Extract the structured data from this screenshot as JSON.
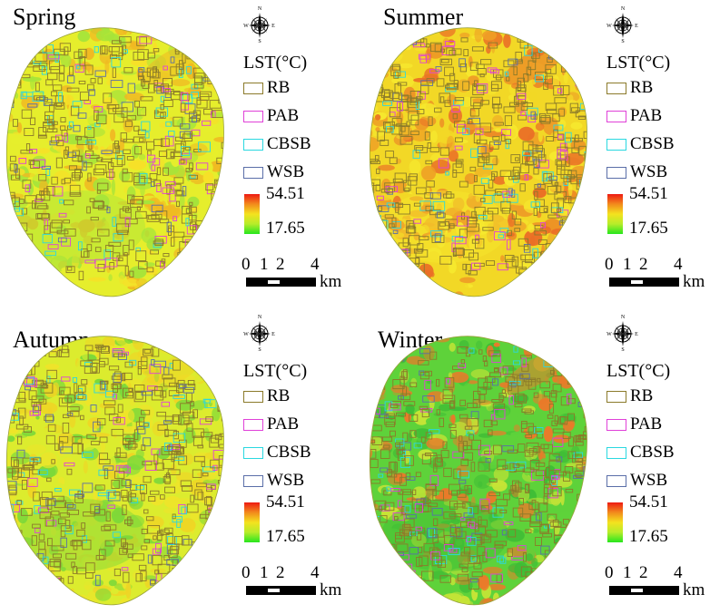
{
  "legend": {
    "title": "LST(°C)",
    "items": [
      {
        "label": "RB",
        "color": "#8b7a2a"
      },
      {
        "label": "PAB",
        "color": "#e040d8"
      },
      {
        "label": "CBSB",
        "color": "#2ad8e0"
      },
      {
        "label": "WSB",
        "color": "#5a6ea8"
      }
    ],
    "max": "54.51",
    "min": "17.65"
  },
  "scale": {
    "ticks": [
      "0",
      "1",
      "2",
      "4"
    ],
    "unit": "km"
  },
  "compass": {
    "n": "N",
    "s": "S",
    "e": "E",
    "w": "W",
    "icon": "compass-rose-icon"
  },
  "panels": [
    {
      "title": "Spring",
      "palette": {
        "base": "#e6ee2c",
        "hot": "#f0b822",
        "cool": "#a6e43a",
        "warm": "#f6e028"
      }
    },
    {
      "title": "Summer",
      "palette": {
        "base": "#f2d826",
        "hot": "#ea6e26",
        "cool": "#f6e82e",
        "warm": "#ee9e26"
      }
    },
    {
      "title": "Autumn",
      "palette": {
        "base": "#dcec2e",
        "hot": "#f0d424",
        "cool": "#7ad83a",
        "warm": "#eee42a"
      }
    },
    {
      "title": "Winter",
      "palette": {
        "base": "#5ed23a",
        "hot": "#ea7a2a",
        "cool": "#3ebc36",
        "warm": "#c8e436"
      }
    }
  ]
}
